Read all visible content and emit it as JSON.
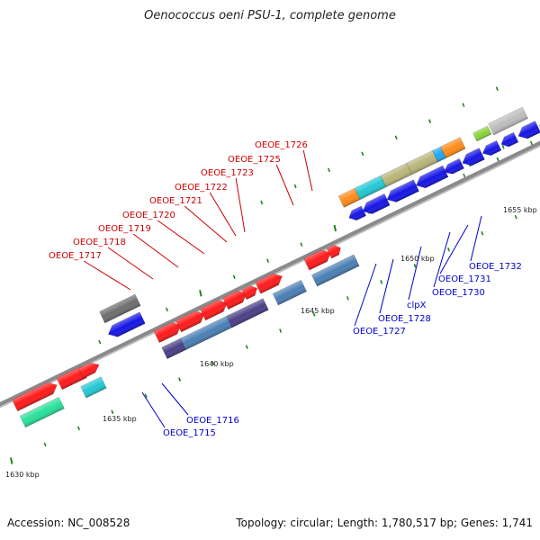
{
  "title": "Oenococcus oeni PSU-1, complete genome",
  "footer": {
    "accession": "Accession: NC_008528",
    "summary": "Topology: circular; Length: 1,780,517 bp; Genes: 1,741"
  },
  "scale_labels": [
    "1630 kbp",
    "1635 kbp",
    "1640 kbp",
    "1645 kbp",
    "1650 kbp",
    "1655 kbp"
  ],
  "gene_labels": {
    "top": [
      "OEOE_1717",
      "OEOE_1718",
      "OEOE_1719",
      "OEOE_1720",
      "OEOE_1721",
      "OEOE_1722",
      "OEOE_1723",
      "OEOE_1725",
      "OEOE_1726"
    ],
    "bottom": [
      "OEOE_1715",
      "OEOE_1716",
      "OEOE_1727",
      "OEOE_1728",
      "clpX",
      "OEOE_1730",
      "OEOE_1731",
      "OEOE_1732"
    ]
  },
  "colors": {
    "backbone": "#8a8a8a",
    "cds_forward": "#ff1a1a",
    "cds_reverse": "#1515e6",
    "label_top": "#cc0000",
    "label_bottom": "#0000cc",
    "tick": "#1a8a1a",
    "steel": "#4a7fb5",
    "purple": "#4b3f86",
    "cyan": "#22c8d4",
    "teal": "#28e09a",
    "olive": "#b9b57a",
    "orange": "#ff8c1a",
    "gray": "#6e6e6e",
    "silver": "#bdbdbd",
    "lime": "#8bd43a",
    "skyblue": "#1ea8f0"
  }
}
